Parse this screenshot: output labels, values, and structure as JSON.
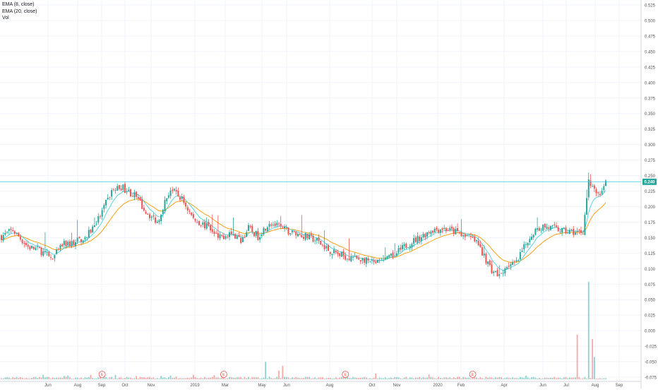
{
  "legend": {
    "ema_short": "EMA (8, close)",
    "ema_long": "EMA (20, close)",
    "volume": "Vol"
  },
  "colors": {
    "up": "#26a69a",
    "down": "#ef5350",
    "ema_short": "#4dd0e1",
    "ema_long": "#ff9800",
    "price_line": "#4dd0e1",
    "event_marker": "#ef5350",
    "grid": "#f0f3fa",
    "axis_text": "#555555"
  },
  "chart_data": {
    "type": "candlestick",
    "title": "",
    "grid": true,
    "last_price": 0.24,
    "last_price_label": "0.240",
    "y_axis": {
      "position": "right",
      "ticks": [
        "0.525",
        "0.500",
        "0.475",
        "0.450",
        "0.425",
        "0.400",
        "0.375",
        "0.350",
        "0.325",
        "0.300",
        "0.275",
        "0.250",
        "0.225",
        "0.200",
        "0.175",
        "0.150",
        "0.125",
        "0.100",
        "0.075",
        "0.050",
        "0.025",
        "0.000",
        "-0.025",
        "-0.050",
        "-0.075"
      ]
    },
    "x_axis": {
      "ticks": [
        "Jun",
        "Aug",
        "Sep",
        "Oct",
        "Nov",
        "2019",
        "Mar",
        "May",
        "Jun",
        "Aug",
        "Oct",
        "Nov",
        "2020",
        "Feb",
        "Apr",
        "Jun",
        "Jul",
        "Aug",
        "Sep"
      ]
    },
    "price_path": {
      "description_points": [
        [
          0,
          0.152
        ],
        [
          6,
          0.162
        ],
        [
          14,
          0.135
        ],
        [
          20,
          0.13
        ],
        [
          27,
          0.115
        ],
        [
          32,
          0.138
        ],
        [
          38,
          0.142
        ],
        [
          45,
          0.152
        ],
        [
          52,
          0.185
        ],
        [
          58,
          0.225
        ],
        [
          63,
          0.232
        ],
        [
          70,
          0.218
        ],
        [
          76,
          0.192
        ],
        [
          82,
          0.175
        ],
        [
          85,
          0.2
        ],
        [
          89,
          0.228
        ],
        [
          95,
          0.212
        ],
        [
          101,
          0.18
        ],
        [
          108,
          0.168
        ],
        [
          114,
          0.148
        ],
        [
          120,
          0.158
        ],
        [
          126,
          0.145
        ],
        [
          130,
          0.165
        ],
        [
          135,
          0.152
        ],
        [
          141,
          0.175
        ],
        [
          147,
          0.165
        ],
        [
          153,
          0.158
        ],
        [
          160,
          0.152
        ],
        [
          166,
          0.145
        ],
        [
          172,
          0.13
        ],
        [
          178,
          0.122
        ],
        [
          184,
          0.118
        ],
        [
          190,
          0.115
        ],
        [
          196,
          0.108
        ],
        [
          202,
          0.112
        ],
        [
          208,
          0.125
        ],
        [
          214,
          0.14
        ],
        [
          220,
          0.15
        ],
        [
          226,
          0.162
        ],
        [
          232,
          0.165
        ],
        [
          238,
          0.16
        ],
        [
          244,
          0.155
        ],
        [
          250,
          0.142
        ],
        [
          254,
          0.12
        ],
        [
          258,
          0.098
        ],
        [
          262,
          0.088
        ],
        [
          266,
          0.105
        ],
        [
          271,
          0.108
        ],
        [
          276,
          0.14
        ],
        [
          280,
          0.16
        ],
        [
          285,
          0.168
        ],
        [
          290,
          0.165
        ],
        [
          296,
          0.16
        ],
        [
          302,
          0.158
        ],
        [
          306,
          0.16
        ],
        [
          309,
          0.24
        ],
        [
          312,
          0.225
        ],
        [
          315,
          0.22
        ],
        [
          318,
          0.24
        ]
      ],
      "bars": 319
    },
    "volume": {
      "spikes": [
        {
          "bar": 54,
          "value": 0.006,
          "dir": "up"
        },
        {
          "bar": 60,
          "value": 0.007,
          "dir": "up"
        },
        {
          "bar": 139,
          "value": 0.028,
          "dir": "up"
        },
        {
          "bar": 146,
          "value": 0.014,
          "dir": "down"
        },
        {
          "bar": 148,
          "value": 0.022,
          "dir": "down"
        },
        {
          "bar": 181,
          "value": 0.007,
          "dir": "up"
        },
        {
          "bar": 303,
          "value": 0.072,
          "dir": "down"
        },
        {
          "bar": 309,
          "value": 0.157,
          "dir": "up"
        },
        {
          "bar": 311,
          "value": 0.065,
          "dir": "down"
        },
        {
          "bar": 312,
          "value": 0.036,
          "dir": "up"
        }
      ]
    },
    "event_markers": [
      {
        "bar": 53,
        "label": "E"
      },
      {
        "bar": 117,
        "label": "E"
      },
      {
        "bar": 181,
        "label": "E"
      },
      {
        "bar": 248,
        "label": "E"
      }
    ]
  }
}
